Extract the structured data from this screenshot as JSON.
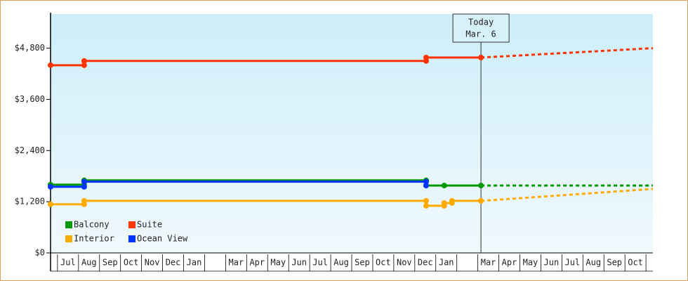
{
  "chart_data": {
    "type": "line",
    "categories": [
      "Jul",
      "Aug",
      "Sep",
      "Oct",
      "Nov",
      "Dec",
      "Jan",
      null,
      "Mar",
      "Apr",
      "May",
      "Jun",
      "Jul",
      "Aug",
      "Sep",
      "Oct",
      "Nov",
      "Dec",
      "Jan",
      null,
      "Mar",
      "Apr",
      "May",
      "Jun",
      "Jul",
      "Aug",
      "Sep",
      "Oct"
    ],
    "xlim": [
      -0.33,
      28.33
    ],
    "ylim": [
      0,
      5600
    ],
    "yticks": [
      {
        "value": 0,
        "label": "$0"
      },
      {
        "value": 1200,
        "label": "$1,200"
      },
      {
        "value": 2400,
        "label": "$2,400"
      },
      {
        "value": 3600,
        "label": "$3,600"
      },
      {
        "value": 4800,
        "label": "$4,800"
      }
    ],
    "annotation": {
      "lines": [
        "Today",
        "Mar. 6"
      ],
      "x": 20.15
    },
    "series": [
      {
        "name": "Balcony",
        "color": "#009900",
        "x": [
          -0.33,
          1.27,
          1.27,
          17.54,
          17.54,
          18.4,
          20.15
        ],
        "values": [
          1600,
          1600,
          1700,
          1700,
          1580,
          1580,
          1580
        ],
        "projection": {
          "x": [
            20.15,
            28.33
          ],
          "values": [
            1580,
            1580
          ]
        }
      },
      {
        "name": "Suite",
        "color": "#ff3300",
        "x": [
          -0.33,
          1.27,
          1.27,
          17.54,
          17.54,
          20.15
        ],
        "values": [
          4400,
          4400,
          4500,
          4500,
          4580,
          4580
        ],
        "projection": {
          "x": [
            20.15,
            28.33
          ],
          "values": [
            4580,
            4800
          ]
        }
      },
      {
        "name": "Interior",
        "color": "#ffaa00",
        "x": [
          -0.33,
          1.27,
          1.27,
          17.54,
          17.54,
          18.4,
          18.4,
          18.77,
          18.77,
          20.15
        ],
        "values": [
          1140,
          1140,
          1220,
          1220,
          1105,
          1105,
          1170,
          1170,
          1220,
          1220
        ],
        "projection": {
          "x": [
            20.15,
            28.33
          ],
          "values": [
            1220,
            1500
          ]
        }
      },
      {
        "name": "Ocean View",
        "color": "#0033ff",
        "x": [
          -0.33,
          1.27,
          1.27,
          17.54,
          17.54
        ],
        "values": [
          1550,
          1550,
          1670,
          1670,
          1580
        ]
      }
    ]
  }
}
